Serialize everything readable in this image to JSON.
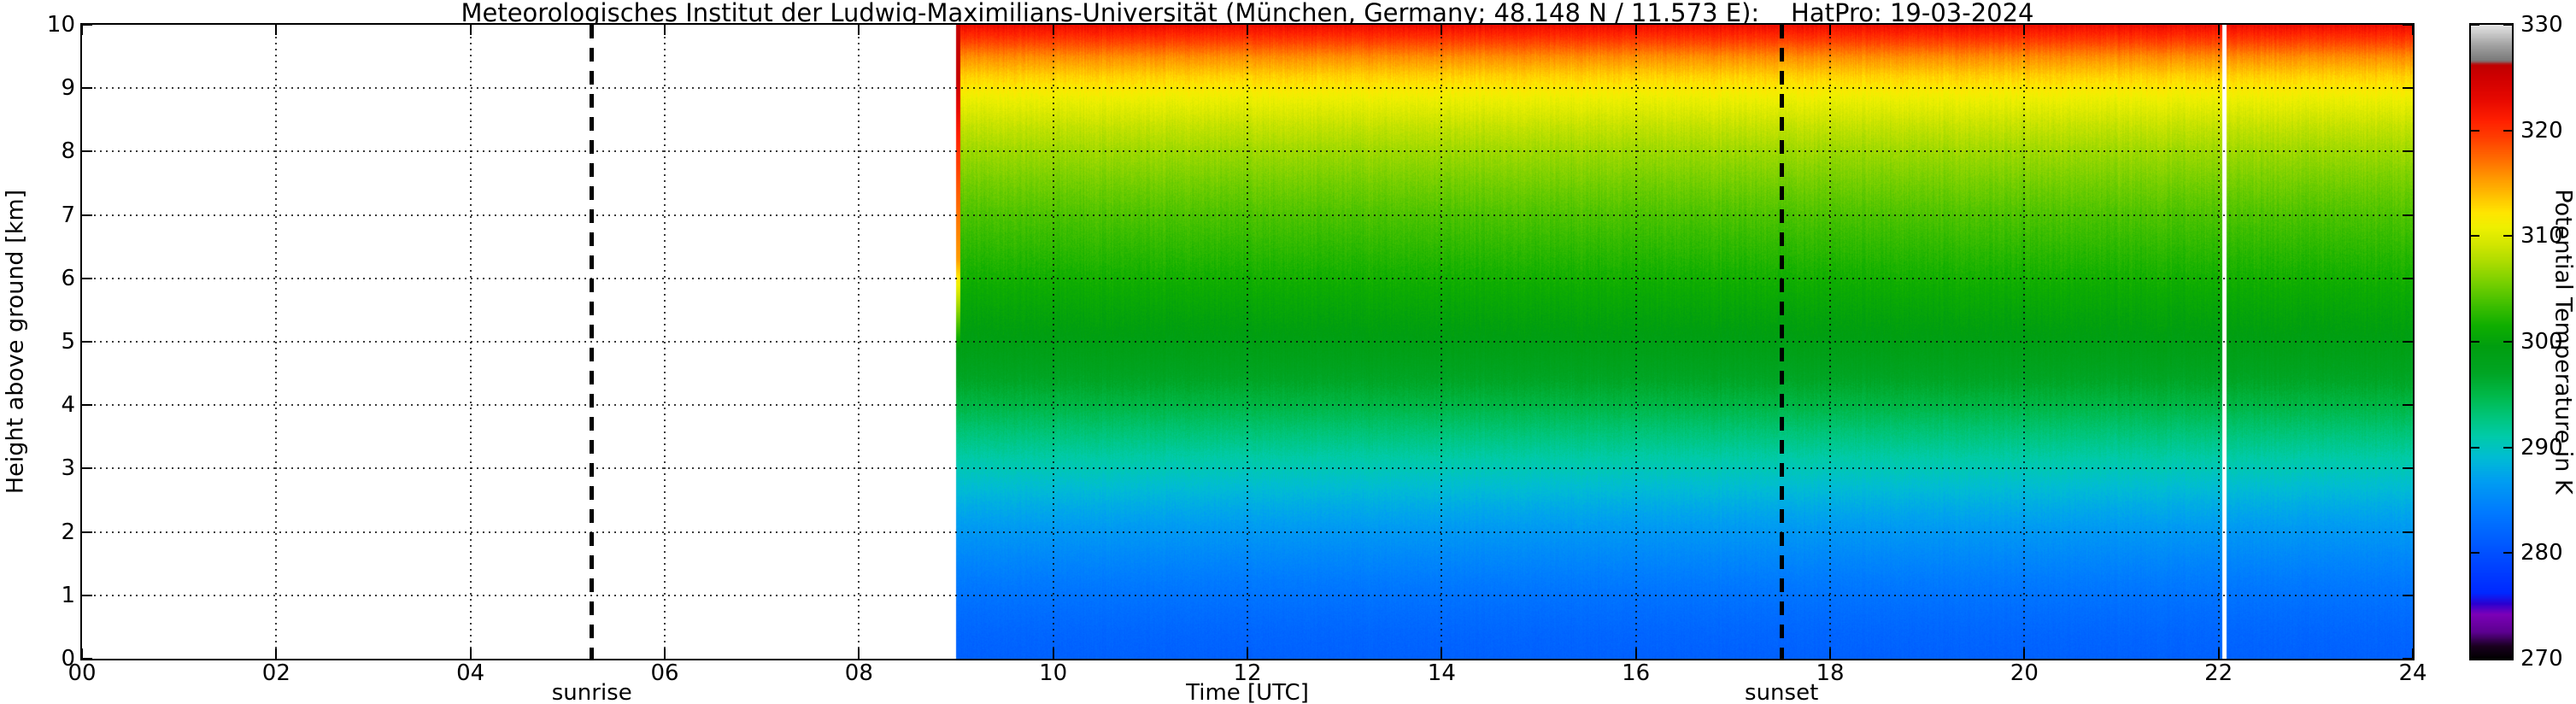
{
  "title": "Meteorologisches Institut der Ludwig-Maximilians-Universität (München, Germany; 48.148 N / 11.573 E):    HatPro: 19-03-2024",
  "axes": {
    "xlabel": "Time [UTC]",
    "ylabel": "Height above ground [km]",
    "x_tick_labels": [
      "00",
      "02",
      "04",
      "06",
      "08",
      "10",
      "12",
      "14",
      "16",
      "18",
      "20",
      "22",
      "24"
    ],
    "x_tick_hours": [
      0,
      2,
      4,
      6,
      8,
      10,
      12,
      14,
      16,
      18,
      20,
      22,
      24
    ],
    "y_tick_labels": [
      "0",
      "1",
      "2",
      "3",
      "4",
      "5",
      "6",
      "7",
      "8",
      "9",
      "10"
    ],
    "y_tick_km": [
      0,
      1,
      2,
      3,
      4,
      5,
      6,
      7,
      8,
      9,
      10
    ]
  },
  "colorbar": {
    "label": "Potential Temperature in K",
    "tick_labels": [
      "270",
      "280",
      "290",
      "300",
      "310",
      "320",
      "330"
    ],
    "tick_values": [
      270,
      280,
      290,
      300,
      310,
      320,
      330
    ],
    "min": 270,
    "max": 330
  },
  "annotations": {
    "sunrise_label": "sunrise",
    "sunset_label": "sunset"
  },
  "chart_data": {
    "type": "heatmap",
    "title": "Meteorologisches Institut der Ludwig-Maximilians-Universität (München, Germany; 48.148 N / 11.573 E):    HatPro: 19-03-2024",
    "xlabel": "Time [UTC]",
    "ylabel": "Height above ground [km]",
    "colorbar_label": "Potential Temperature in K",
    "x_range_hours": [
      0,
      24
    ],
    "y_range_km": [
      0,
      10
    ],
    "color_range_K": [
      270,
      330
    ],
    "grid": "dotted",
    "data_start_hour": 9.0,
    "data_end_hour": 24.0,
    "data_gap_hours": [
      22.04,
      22.08
    ],
    "sunrise_hour": 5.25,
    "sunset_hour": 17.5,
    "profile_heights_km": [
      0,
      0.4,
      0.8,
      1.2,
      1.6,
      2.0,
      2.4,
      2.8,
      3.2,
      3.6,
      4.0,
      4.4,
      4.8,
      5.2,
      5.6,
      6.0,
      6.5,
      7.0,
      7.5,
      8.0,
      8.4,
      8.8,
      9.2,
      9.5,
      9.8,
      10.0
    ],
    "profile_theta_K": [
      281.5,
      282.0,
      282.8,
      283.8,
      285.0,
      286.3,
      287.8,
      289.5,
      291.3,
      293.2,
      295.2,
      297.0,
      298.5,
      299.6,
      300.6,
      301.6,
      302.8,
      304.0,
      305.4,
      307.0,
      308.6,
      310.6,
      313.2,
      316.0,
      320.0,
      322.5
    ],
    "first_column_warm_anomaly_K": 13,
    "noise_K": 0.6,
    "colormap_stops": [
      [
        270,
        "#000000"
      ],
      [
        271.2,
        "#1a0020"
      ],
      [
        272.5,
        "#5c0090"
      ],
      [
        274.2,
        "#7d00b8"
      ],
      [
        275.2,
        "#2a00d0"
      ],
      [
        276.2,
        "#0028ff"
      ],
      [
        280,
        "#0050ff"
      ],
      [
        284,
        "#007cff"
      ],
      [
        287,
        "#00a0f0"
      ],
      [
        289,
        "#00bcd4"
      ],
      [
        291,
        "#00cbaa"
      ],
      [
        293,
        "#00c578"
      ],
      [
        295,
        "#00b848"
      ],
      [
        297,
        "#00a524"
      ],
      [
        299.5,
        "#009e10"
      ],
      [
        301.5,
        "#0fae00"
      ],
      [
        303.5,
        "#3fbf00"
      ],
      [
        305.5,
        "#76cf00"
      ],
      [
        307.5,
        "#abdc00"
      ],
      [
        309.2,
        "#d2e600"
      ],
      [
        310.8,
        "#eef000"
      ],
      [
        312.2,
        "#ffe600"
      ],
      [
        313.8,
        "#ffc000"
      ],
      [
        315.5,
        "#ff9800"
      ],
      [
        317.2,
        "#ff6e00"
      ],
      [
        319,
        "#ff4400"
      ],
      [
        321,
        "#ff1e00"
      ],
      [
        323,
        "#e60800"
      ],
      [
        325,
        "#cf0000"
      ],
      [
        326.2,
        "#c00000"
      ],
      [
        326.6,
        "#7a7a7a"
      ],
      [
        328,
        "#a0a0a0"
      ],
      [
        330,
        "#e6e6e6"
      ]
    ]
  }
}
